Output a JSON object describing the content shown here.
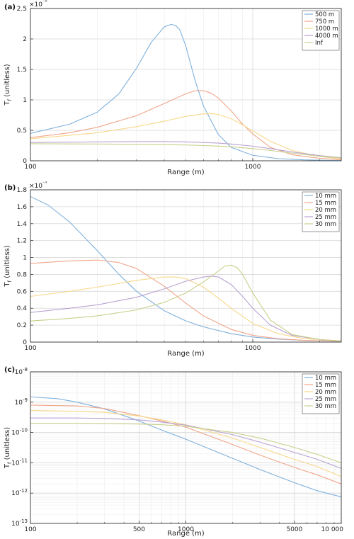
{
  "chart_data": [
    {
      "panel": "(a)",
      "type": "line",
      "xscale": "log",
      "yscale": "linear",
      "xlim": [
        100,
        2500
      ],
      "ylim": [
        0,
        2.5e-09
      ],
      "y_exponent_label": "×10⁻⁹",
      "xticks": [
        100,
        1000
      ],
      "xtick_labels": [
        "100",
        "1000"
      ],
      "yticks": [
        0,
        5e-10,
        1e-09,
        1.5e-09,
        2e-09,
        2.5e-09
      ],
      "ytick_labels": [
        "0",
        "0.5",
        "1",
        "1.5",
        "2",
        "2.5"
      ],
      "xlabel": "Range (m)",
      "ylabel": "T",
      "ylabel_sub": "f",
      "ylabel_suffix": " (unitless)",
      "grid": true,
      "legend": "top-right",
      "series": [
        {
          "name": "500 m",
          "color": "#7fb1dd",
          "x": [
            100,
            150,
            200,
            250,
            300,
            350,
            400,
            430,
            450,
            470,
            500,
            550,
            600,
            700,
            800,
            1000,
            1300,
            1700,
            2100,
            2500
          ],
          "y": [
            4.5e-10,
            6e-10,
            8e-10,
            1.1e-09,
            1.52e-09,
            1.95e-09,
            2.2e-09,
            2.24e-09,
            2.22e-09,
            2.15e-09,
            1.88e-09,
            1.32e-09,
            9e-10,
            4.3e-10,
            2.2e-10,
            9e-11,
            3.5e-11,
            1.5e-11,
            8e-12,
            5e-12
          ]
        },
        {
          "name": "750 m",
          "color": "#f0a58a",
          "x": [
            100,
            150,
            200,
            300,
            400,
            500,
            550,
            600,
            650,
            700,
            800,
            900,
            1000,
            1200,
            1500,
            2000,
            2500
          ],
          "y": [
            3.8e-10,
            4.6e-10,
            5.5e-10,
            7.4e-10,
            9.4e-10,
            1.1e-09,
            1.15e-09,
            1.15e-09,
            1.11e-09,
            1.03e-09,
            8.2e-10,
            6e-10,
            4.4e-10,
            2.2e-10,
            1e-10,
            4e-11,
            1.8e-11
          ]
        },
        {
          "name": "1000 m",
          "color": "#f8d88a",
          "x": [
            100,
            200,
            300,
            400,
            500,
            600,
            650,
            700,
            800,
            900,
            1000,
            1200,
            1500,
            2000,
            2500
          ],
          "y": [
            3.6e-10,
            4.6e-10,
            5.6e-10,
            6.5e-10,
            7.3e-10,
            7.7e-10,
            7.75e-10,
            7.6e-10,
            6.9e-10,
            5.9e-10,
            4.9e-10,
            3.2e-10,
            1.7e-10,
            7e-11,
            3e-11
          ]
        },
        {
          "name": "4000 m",
          "color": "#b9a3d2",
          "x": [
            100,
            200,
            300,
            400,
            500,
            600,
            700,
            800,
            1000,
            1200,
            1500,
            2000,
            2500
          ],
          "y": [
            3e-10,
            3.1e-10,
            3.15e-10,
            3.15e-10,
            3.1e-10,
            3e-10,
            2.9e-10,
            2.75e-10,
            2.4e-10,
            2e-10,
            1.45e-10,
            8.5e-11,
            5e-11
          ]
        },
        {
          "name": "Inf",
          "color": "#c8d08a",
          "x": [
            100,
            200,
            300,
            400,
            500,
            600,
            700,
            800,
            1000,
            1200,
            1500,
            2000,
            2500
          ],
          "y": [
            2.8e-10,
            2.75e-10,
            2.7e-10,
            2.65e-10,
            2.6e-10,
            2.5e-10,
            2.4e-10,
            2.3e-10,
            2e-10,
            1.7e-10,
            1.25e-10,
            7.5e-11,
            4.5e-11
          ]
        }
      ]
    },
    {
      "panel": "(b)",
      "type": "line",
      "xscale": "log",
      "yscale": "linear",
      "xlim": [
        100,
        2500
      ],
      "ylim": [
        0,
        1.8e-09
      ],
      "y_exponent_label": "×10⁻⁹",
      "xticks": [
        100,
        1000
      ],
      "xtick_labels": [
        "100",
        "1000"
      ],
      "yticks": [
        0,
        2e-10,
        4e-10,
        6e-10,
        8e-10,
        1e-09,
        1.2e-09,
        1.4e-09,
        1.6e-09,
        1.8e-09
      ],
      "ytick_labels": [
        "0",
        "0.2",
        "0.4",
        "0.6",
        "0.8",
        "1",
        "1.2",
        "1.4",
        "1.6",
        "1.8"
      ],
      "xlabel": "Range (m)",
      "ylabel": "T",
      "ylabel_sub": "f",
      "ylabel_suffix": " (unitless)",
      "grid": true,
      "legend": "top-right",
      "series": [
        {
          "name": "10 mm",
          "color": "#7fb1dd",
          "x": [
            100,
            120,
            150,
            200,
            250,
            300,
            400,
            500,
            600,
            800,
            1000,
            1300,
            1700,
            2500
          ],
          "y": [
            1.72e-09,
            1.62e-09,
            1.42e-09,
            1.08e-09,
            8e-10,
            6e-10,
            3.7e-10,
            2.5e-10,
            1.8e-10,
            1e-10,
            6e-11,
            3.5e-11,
            2e-11,
            8e-12
          ]
        },
        {
          "name": "15 mm",
          "color": "#f0a58a",
          "x": [
            100,
            150,
            200,
            250,
            300,
            400,
            500,
            600,
            800,
            1000,
            1300,
            1700,
            2500
          ],
          "y": [
            9.3e-10,
            9.6e-10,
            9.7e-10,
            9.4e-10,
            8.7e-10,
            6.6e-10,
            4.6e-10,
            3.1e-10,
            1.5e-10,
            8e-11,
            4e-11,
            2e-11,
            1e-11
          ]
        },
        {
          "name": "20 mm",
          "color": "#f8d88a",
          "x": [
            100,
            150,
            200,
            300,
            400,
            450,
            500,
            600,
            700,
            800,
            1000,
            1300,
            1700,
            2500
          ],
          "y": [
            5.4e-10,
            6e-10,
            6.5e-10,
            7.3e-10,
            7.7e-10,
            7.7e-10,
            7.5e-10,
            6.5e-10,
            5.2e-10,
            4e-10,
            2.2e-10,
            1e-10,
            4e-11,
            1.5e-11
          ]
        },
        {
          "name": "25 mm",
          "color": "#b9a3d2",
          "x": [
            100,
            150,
            200,
            300,
            400,
            500,
            600,
            650,
            700,
            800,
            900,
            1000,
            1200,
            1500,
            2000,
            2500
          ],
          "y": [
            3.5e-10,
            4e-10,
            4.4e-10,
            5.3e-10,
            6.3e-10,
            7.2e-10,
            7.7e-10,
            7.8e-10,
            7.7e-10,
            6.8e-10,
            5.4e-10,
            4e-10,
            2e-10,
            8e-11,
            3e-11,
            1.2e-11
          ]
        },
        {
          "name": "30 mm",
          "color": "#c8d08a",
          "x": [
            100,
            150,
            200,
            300,
            400,
            500,
            600,
            700,
            750,
            800,
            850,
            900,
            1000,
            1200,
            1500,
            2000,
            2500
          ],
          "y": [
            2.5e-10,
            2.8e-10,
            3.1e-10,
            3.8e-10,
            4.7e-10,
            5.8e-10,
            7.1e-10,
            8.4e-10,
            9e-10,
            9.1e-10,
            8.8e-10,
            8e-10,
            5.8e-10,
            2.6e-10,
            9e-11,
            3e-11,
            1.2e-11
          ]
        }
      ]
    },
    {
      "panel": "(c)",
      "type": "line",
      "xscale": "log",
      "yscale": "log",
      "xlim": [
        100,
        10000
      ],
      "ylim": [
        1e-13,
        1e-08
      ],
      "xticks": [
        100,
        500,
        1000,
        5000,
        10000
      ],
      "xtick_labels": [
        "100",
        "500",
        "1000",
        "5000",
        "10 000"
      ],
      "yticks": [
        1e-13,
        1e-12,
        1e-11,
        1e-10,
        1e-09,
        1e-08
      ],
      "ytick_base": "10",
      "ytick_exps": [
        "-13",
        "-12",
        "-11",
        "-10",
        "-9",
        "-8"
      ],
      "xlabel": "Range (m)",
      "ylabel": "T",
      "ylabel_sub": "f",
      "ylabel_suffix": " (unitless)",
      "grid": true,
      "legend": "top-right",
      "series": [
        {
          "name": "10 mm",
          "color": "#7fb1dd",
          "x": [
            100,
            150,
            200,
            300,
            500,
            700,
            1000,
            2000,
            3000,
            5000,
            7000,
            10000
          ],
          "y": [
            1.5e-09,
            1.3e-09,
            1e-09,
            6e-10,
            2.4e-10,
            1.2e-10,
            6e-11,
            1.4e-11,
            6e-12,
            2.2e-12,
            1.2e-12,
            7.5e-13
          ]
        },
        {
          "name": "15 mm",
          "color": "#f0a58a",
          "x": [
            100,
            200,
            300,
            500,
            700,
            1000,
            2000,
            3000,
            5000,
            7000,
            10000
          ],
          "y": [
            8e-10,
            7.5e-10,
            6.2e-10,
            3.6e-10,
            2.4e-10,
            1.5e-10,
            4e-11,
            1.8e-11,
            7e-12,
            4e-12,
            2e-12
          ]
        },
        {
          "name": "20 mm",
          "color": "#f8d88a",
          "x": [
            100,
            200,
            300,
            500,
            700,
            1000,
            2000,
            3000,
            5000,
            7000,
            10000
          ],
          "y": [
            5.3e-10,
            5e-10,
            4.6e-10,
            3.5e-10,
            2.6e-10,
            1.8e-10,
            6.5e-11,
            3.2e-11,
            1.3e-11,
            7.5e-12,
            3.5e-12
          ]
        },
        {
          "name": "25 mm",
          "color": "#b9a3d2",
          "x": [
            100,
            200,
            300,
            500,
            700,
            1000,
            2000,
            3000,
            5000,
            7000,
            10000
          ],
          "y": [
            3e-10,
            3e-10,
            2.9e-10,
            2.6e-10,
            2.2e-10,
            1.75e-10,
            8.5e-11,
            4.8e-11,
            2.2e-11,
            1.3e-11,
            6.5e-12
          ]
        },
        {
          "name": "30 mm",
          "color": "#c8d08a",
          "x": [
            100,
            200,
            300,
            500,
            700,
            1000,
            2000,
            3000,
            5000,
            7000,
            10000
          ],
          "y": [
            2e-10,
            2e-10,
            1.98e-10,
            1.9e-10,
            1.8e-10,
            1.6e-10,
            1e-10,
            6.5e-11,
            3.2e-11,
            1.9e-11,
            1e-11
          ]
        }
      ]
    }
  ]
}
